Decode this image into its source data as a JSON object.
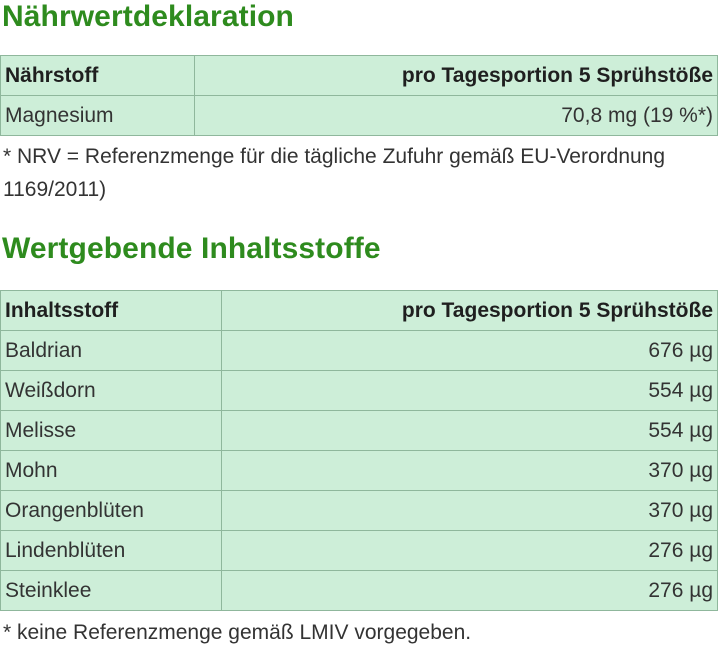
{
  "nutrition": {
    "title": "Nährwertdeklaration",
    "header": {
      "col1": "Nährstoff",
      "col2": "pro Tagesportion 5 Sprühstöße"
    },
    "rows": [
      {
        "name": "Magnesium",
        "value": "70,8 mg (19 %*)"
      }
    ],
    "footnote": "* NRV = Referenzmenge für die tägliche Zufuhr gemäß EU-Verordnung 1169/2011)"
  },
  "ingredients": {
    "title": "Wertgebende Inhaltsstoffe",
    "header": {
      "col1": "Inhaltsstoff",
      "col2": "pro Tagesportion 5 Sprühstöße"
    },
    "rows": [
      {
        "name": "Baldrian",
        "value": "676 µg"
      },
      {
        "name": "Weißdorn",
        "value": "554 µg"
      },
      {
        "name": "Melisse",
        "value": "554 µg"
      },
      {
        "name": "Mohn",
        "value": "370 µg"
      },
      {
        "name": "Orangenblüten",
        "value": "370 µg"
      },
      {
        "name": "Lindenblüten",
        "value": "276 µg"
      },
      {
        "name": "Steinklee",
        "value": "276 µg"
      }
    ],
    "footnote": "* keine Referenzmenge gemäß LMIV vorgegeben."
  },
  "colors": {
    "heading": "#2e8b1e",
    "table_bg": "#cdeed8",
    "table_border": "#8fb79c"
  }
}
